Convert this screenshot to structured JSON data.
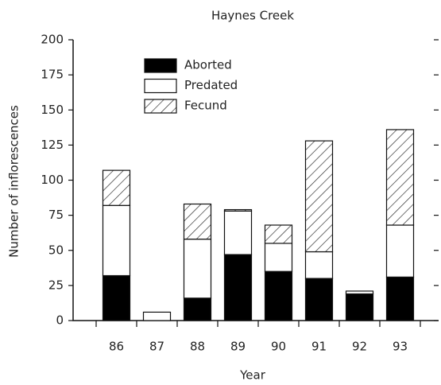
{
  "chart_data": {
    "type": "bar",
    "stacked": true,
    "title": "Haynes Creek",
    "xlabel": "Year",
    "ylabel": "Number of inflorescences",
    "categories": [
      "86",
      "87",
      "88",
      "89",
      "90",
      "91",
      "92",
      "93"
    ],
    "series": [
      {
        "name": "Aborted",
        "color": "#000000",
        "values": [
          32,
          0,
          16,
          47,
          35,
          30,
          19,
          31
        ]
      },
      {
        "name": "Predated",
        "color": "#ffffff",
        "values": [
          50,
          6,
          42,
          31,
          20,
          19,
          2,
          37
        ]
      },
      {
        "name": "Fecund",
        "color": "#ffffff",
        "hatch": true,
        "values": [
          25,
          0,
          25,
          1,
          13,
          79,
          0,
          68
        ]
      }
    ],
    "ylim": [
      0,
      200
    ],
    "yticks": [
      0,
      25,
      50,
      75,
      100,
      125,
      150,
      175,
      200
    ]
  }
}
